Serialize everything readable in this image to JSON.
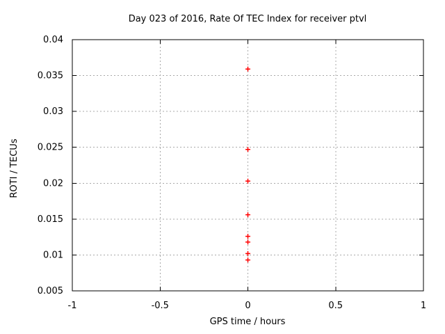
{
  "window": {
    "background": "#ffffff"
  },
  "chart_data": {
    "type": "scatter",
    "title": "Day 023 of 2016, Rate Of TEC Index for receiver ptvl",
    "xlabel": "GPS time / hours",
    "ylabel": "ROTI / TECUs",
    "xlim": [
      -1,
      1
    ],
    "ylim": [
      0.005,
      0.04
    ],
    "xticks": [
      {
        "v": -1,
        "label": "-1"
      },
      {
        "v": -0.5,
        "label": "-0.5"
      },
      {
        "v": 0,
        "label": "0"
      },
      {
        "v": 0.5,
        "label": "0.5"
      },
      {
        "v": 1,
        "label": "1"
      }
    ],
    "yticks": [
      {
        "v": 0.005,
        "label": "0.005"
      },
      {
        "v": 0.01,
        "label": "0.01"
      },
      {
        "v": 0.015,
        "label": "0.015"
      },
      {
        "v": 0.02,
        "label": "0.02"
      },
      {
        "v": 0.025,
        "label": "0.025"
      },
      {
        "v": 0.03,
        "label": "0.03"
      },
      {
        "v": 0.035,
        "label": "0.035"
      },
      {
        "v": 0.04,
        "label": "0.04"
      }
    ],
    "grid": "dashed",
    "legend_position": "none",
    "marker": "plus",
    "colors": {
      "marker": "#ff0000",
      "grid": "#a8a8a8",
      "axis": "#000000",
      "text": "#000000",
      "background": "#ffffff"
    },
    "series": [
      {
        "name": "ROTI",
        "x": [
          0,
          0,
          0,
          0,
          0,
          0,
          0,
          0
        ],
        "y": [
          0.0359,
          0.0247,
          0.0203,
          0.0156,
          0.0126,
          0.0118,
          0.0102,
          0.0093
        ]
      }
    ]
  }
}
